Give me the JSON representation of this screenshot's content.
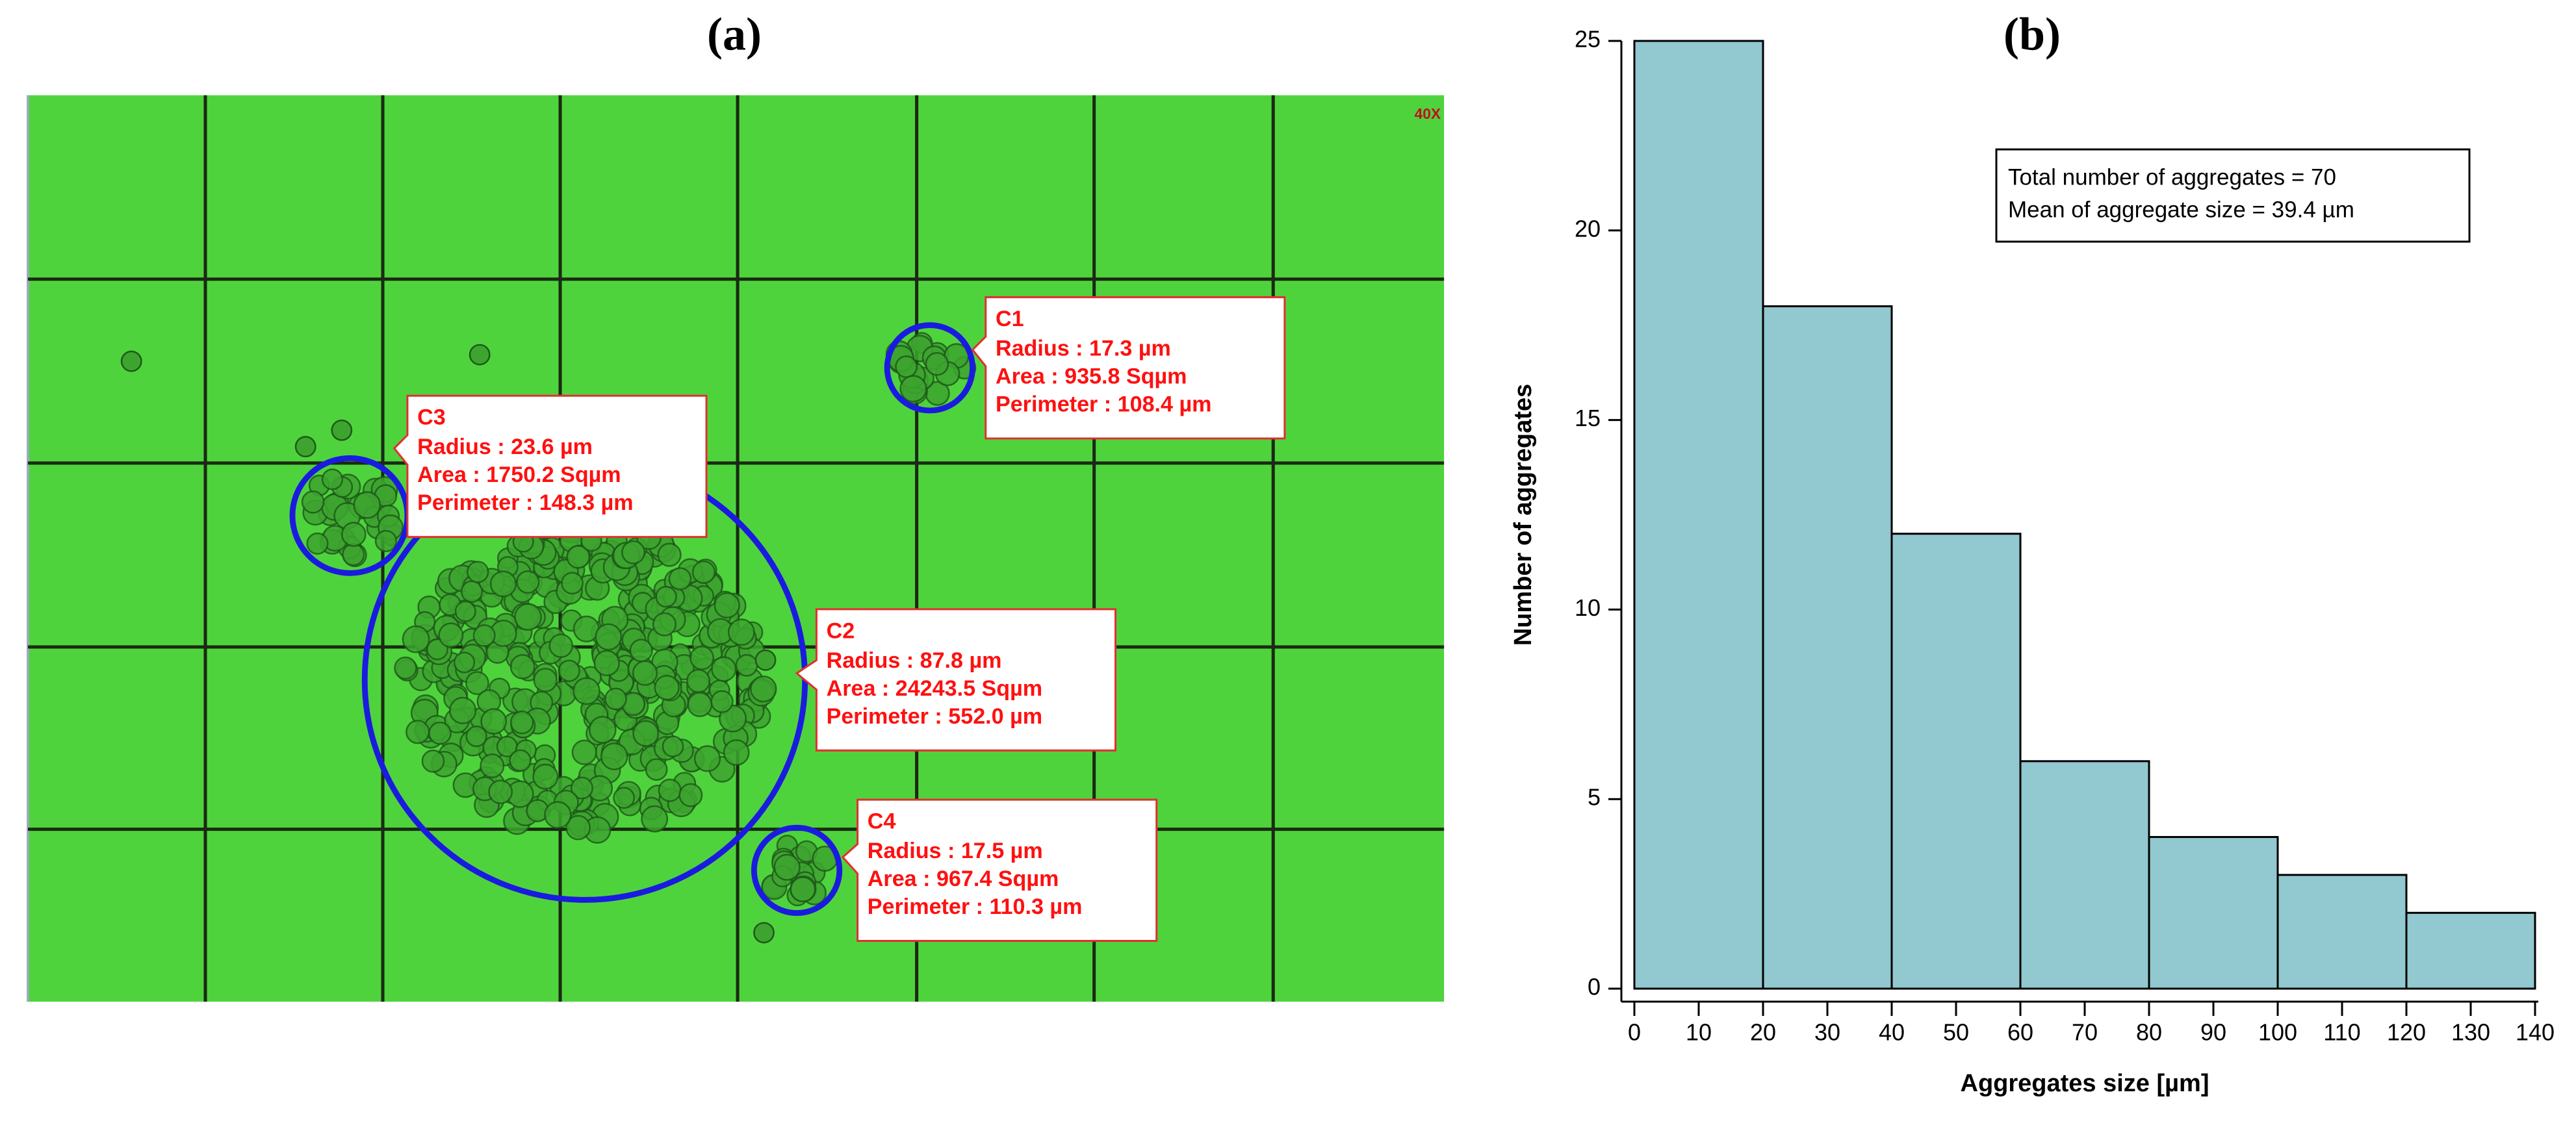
{
  "panel_a": {
    "label": "(a)",
    "magnification": "40X",
    "callouts": [
      {
        "name": "C1",
        "lines": [
          "Radius : 17.3 µm",
          "Area : 935.8 Sqµm",
          "Perimeter : 108.4 µm"
        ]
      },
      {
        "name": "C3",
        "lines": [
          "Radius : 23.6 µm",
          "Area : 1750.2 Sqµm",
          "Perimeter : 148.3 µm"
        ]
      },
      {
        "name": "C2",
        "lines": [
          "Radius : 87.8 µm",
          "Area : 24243.5 Sqµm",
          "Perimeter : 552.0 µm"
        ]
      },
      {
        "name": "C4",
        "lines": [
          "Radius : 17.5 µm",
          "Area : 967.4 Sqµm",
          "Perimeter : 110.3 µm"
        ]
      }
    ]
  },
  "chart_data": {
    "type": "histogram",
    "label": "(b)",
    "x_label": "Aggregates size [µm]",
    "y_label": "Number of aggregates",
    "bins": [
      0,
      20,
      40,
      60,
      80,
      100,
      120,
      140
    ],
    "values": [
      25,
      18,
      12,
      6,
      4,
      3,
      2
    ],
    "color": "#92c8d0",
    "xlim": [
      0,
      140
    ],
    "xticks": [
      0,
      10,
      20,
      30,
      40,
      50,
      60,
      70,
      80,
      90,
      100,
      110,
      120,
      130,
      140
    ],
    "ylim": [
      0,
      25
    ],
    "yticks": [
      0,
      5,
      10,
      15,
      20,
      25
    ],
    "annotations": [
      "Total number of aggregates = 70",
      "Mean of aggregate size = 39.4 µm"
    ]
  }
}
